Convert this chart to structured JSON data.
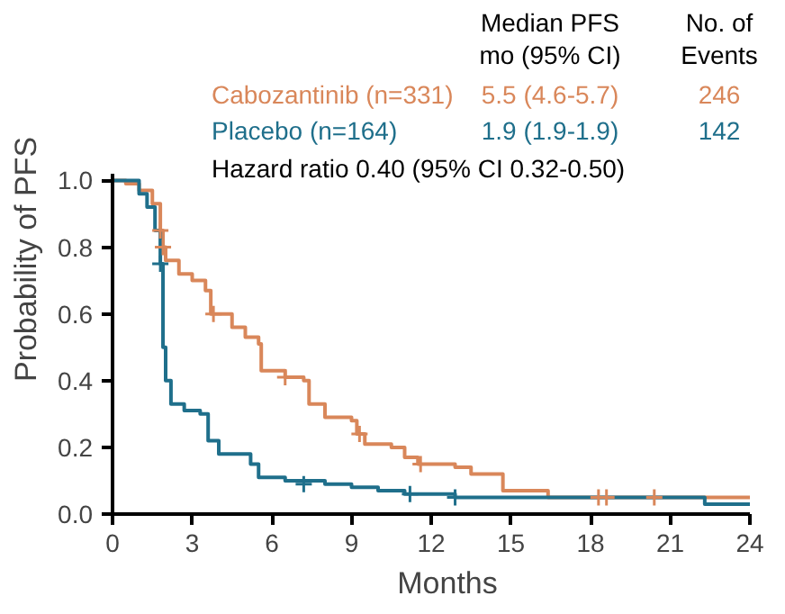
{
  "chart_data": {
    "type": "step",
    "xlabel": "Months",
    "ylabel": "Probability of PFS",
    "xlim": [
      0,
      24
    ],
    "xticks": [
      0,
      3,
      6,
      9,
      12,
      15,
      18,
      21,
      24
    ],
    "ylim": [
      0,
      1.02
    ],
    "yticks": [
      {
        "value": 0,
        "label": "0.0"
      },
      {
        "value": 0.2,
        "label": "0.2"
      },
      {
        "value": 0.4,
        "label": "0.4"
      },
      {
        "value": 0.6,
        "label": "0.6"
      },
      {
        "value": 0.8,
        "label": "0.8"
      },
      {
        "value": 1,
        "label": "1.0"
      }
    ],
    "grid": false,
    "line_style": "solid",
    "series": [
      {
        "name": "Cabozantinib (n=331)",
        "color": "#d9875a",
        "x": [
          0,
          0.5,
          1.0,
          1.5,
          1.8,
          1.9,
          2.0,
          2.5,
          3.0,
          3.5,
          3.7,
          4.5,
          5.0,
          5.5,
          5.6,
          6.5,
          7.2,
          7.4,
          8.0,
          9.0,
          9.2,
          9.5,
          10.5,
          11.0,
          11.5,
          12.9,
          13.5,
          14.7,
          16.4,
          24
        ],
        "values": [
          1.0,
          0.99,
          0.97,
          0.93,
          0.85,
          0.8,
          0.76,
          0.72,
          0.7,
          0.67,
          0.6,
          0.56,
          0.53,
          0.51,
          0.43,
          0.41,
          0.4,
          0.33,
          0.29,
          0.28,
          0.24,
          0.21,
          0.2,
          0.17,
          0.15,
          0.14,
          0.12,
          0.07,
          0.05,
          0.05
        ]
      },
      {
        "name": "Placebo (n=164)",
        "color": "#1f6f8b",
        "x": [
          0,
          1.0,
          1.3,
          1.6,
          1.8,
          1.9,
          2.0,
          2.2,
          2.7,
          3.3,
          3.6,
          4.0,
          5.2,
          5.5,
          6.5,
          8.0,
          9.0,
          10.0,
          11.0,
          12.9,
          22.3,
          24
        ],
        "values": [
          1.0,
          0.96,
          0.92,
          0.85,
          0.75,
          0.5,
          0.4,
          0.33,
          0.31,
          0.3,
          0.22,
          0.18,
          0.15,
          0.11,
          0.1,
          0.09,
          0.08,
          0.07,
          0.06,
          0.05,
          0.03,
          0.03
        ]
      },
      {
        "color": "#d9875a",
        "type": "scatter",
        "marker": "cross",
        "x": [
          1.8,
          1.9,
          3.8,
          6.5,
          9.3,
          11.6,
          18.3,
          18.6,
          20.4
        ],
        "values": [
          0.85,
          0.8,
          0.6,
          0.41,
          0.24,
          0.15,
          0.05,
          0.05,
          0.05
        ]
      },
      {
        "color": "#1f6f8b",
        "type": "scatter",
        "marker": "cross",
        "x": [
          1.8,
          7.2,
          11.2,
          12.9
        ],
        "values": [
          0.75,
          0.09,
          0.06,
          0.05
        ]
      }
    ],
    "annotations": [
      "Median PFS",
      "mo (95% CI)",
      "No. of",
      "Events",
      "5.5 (4.6-5.7)",
      "246",
      "1.9 (1.9-1.9)",
      "142",
      "Hazard ratio 0.40 (95% CI 0.32-0.50)"
    ]
  }
}
